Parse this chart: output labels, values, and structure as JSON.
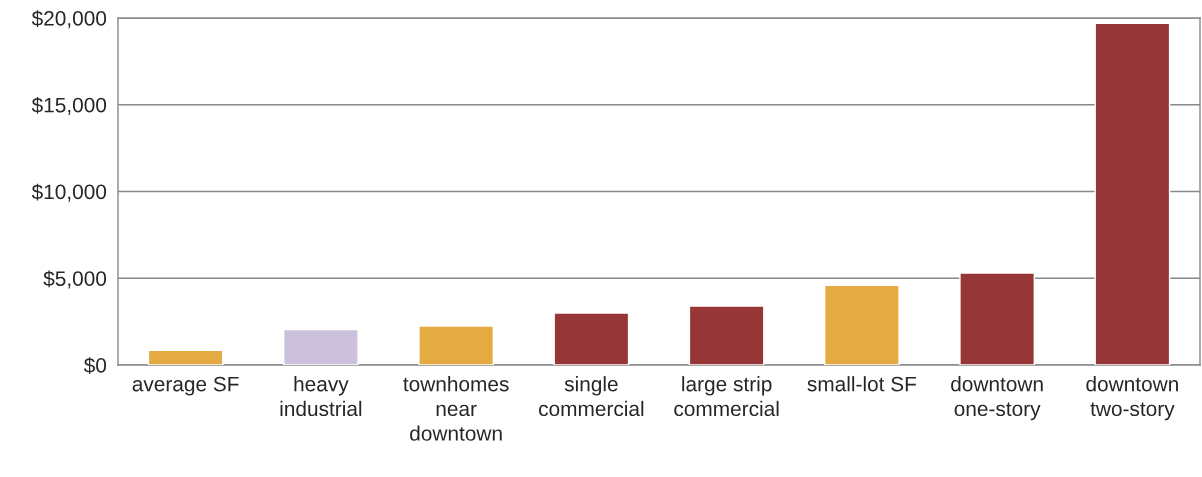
{
  "chart_data": {
    "type": "bar",
    "categories": [
      "average SF",
      "heavy\nindustrial",
      "townhomes\nnear\ndowntown",
      "single\ncommercial",
      "large strip\ncommercial",
      "small-lot SF",
      "downtown\none-story",
      "downtown\ntwo-story"
    ],
    "values": [
      850,
      2050,
      2250,
      3000,
      3400,
      4600,
      5300,
      19700
    ],
    "colors": [
      "#e3ab42",
      "#ccc1dc",
      "#e3ab42",
      "#963636",
      "#963636",
      "#e3ab42",
      "#963636",
      "#963636"
    ],
    "ylim": [
      0,
      20000
    ],
    "yticks": [
      {
        "value": 0,
        "label": "$0"
      },
      {
        "value": 5000,
        "label": "$5,000"
      },
      {
        "value": 10000,
        "label": "$10,000"
      },
      {
        "value": 15000,
        "label": "$15,000"
      },
      {
        "value": 20000,
        "label": "$20,000"
      }
    ],
    "grid": "y"
  }
}
